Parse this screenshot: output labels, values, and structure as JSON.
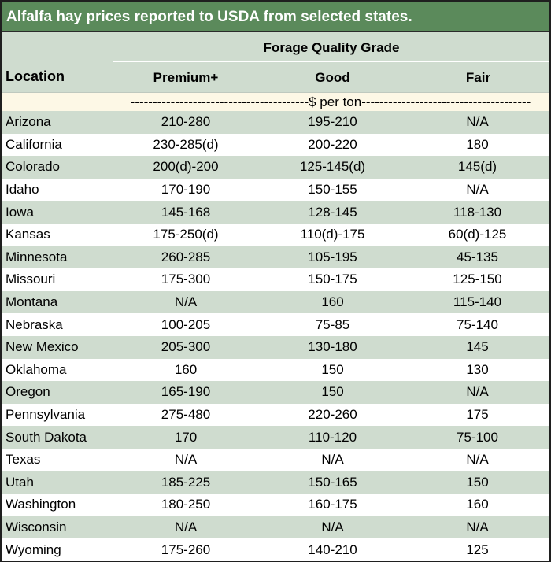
{
  "title": "Alfalfa hay prices reported to USDA from selected states.",
  "header": {
    "group": "Forage Quality Grade",
    "location": "Location",
    "premium": "Premium+",
    "good": "Good",
    "fair": "Fair"
  },
  "units": "----------------------------------------$ per ton--------------------------------------",
  "rows": [
    {
      "location": "Arizona",
      "premium": "210-280",
      "good": "195-210",
      "fair": "N/A"
    },
    {
      "location": "California",
      "premium": "230-285(d)",
      "good": "200-220",
      "fair": "180"
    },
    {
      "location": "Colorado",
      "premium": "200(d)-200",
      "good": "125-145(d)",
      "fair": "145(d)"
    },
    {
      "location": "Idaho",
      "premium": "170-190",
      "good": "150-155",
      "fair": "N/A"
    },
    {
      "location": "Iowa",
      "premium": "145-168",
      "good": "128-145",
      "fair": "118-130"
    },
    {
      "location": "Kansas",
      "premium": "175-250(d)",
      "good": "110(d)-175",
      "fair": "60(d)-125"
    },
    {
      "location": "Minnesota",
      "premium": "260-285",
      "good": "105-195",
      "fair": "45-135"
    },
    {
      "location": "Missouri",
      "premium": "175-300",
      "good": "150-175",
      "fair": "125-150"
    },
    {
      "location": "Montana",
      "premium": "N/A",
      "good": "160",
      "fair": "115-140"
    },
    {
      "location": "Nebraska",
      "premium": "100-205",
      "good": "75-85",
      "fair": "75-140"
    },
    {
      "location": "New Mexico",
      "premium": "205-300",
      "good": "130-180",
      "fair": "145"
    },
    {
      "location": "Oklahoma",
      "premium": "160",
      "good": "150",
      "fair": "130"
    },
    {
      "location": "Oregon",
      "premium": "165-190",
      "good": "150",
      "fair": "N/A"
    },
    {
      "location": "Pennsylvania",
      "premium": "275-480",
      "good": "220-260",
      "fair": "175"
    },
    {
      "location": "South Dakota",
      "premium": "170",
      "good": "110-120",
      "fair": "75-100"
    },
    {
      "location": "Texas",
      "premium": "N/A",
      "good": "N/A",
      "fair": "N/A"
    },
    {
      "location": "Utah",
      "premium": "185-225",
      "good": "150-165",
      "fair": "150"
    },
    {
      "location": "Washington",
      "premium": "180-250",
      "good": "160-175",
      "fair": "160"
    },
    {
      "location": "Wisconsin",
      "premium": "N/A",
      "good": "N/A",
      "fair": "N/A"
    },
    {
      "location": "Wyoming",
      "premium": "175-260",
      "good": "140-210",
      "fair": "125"
    }
  ]
}
